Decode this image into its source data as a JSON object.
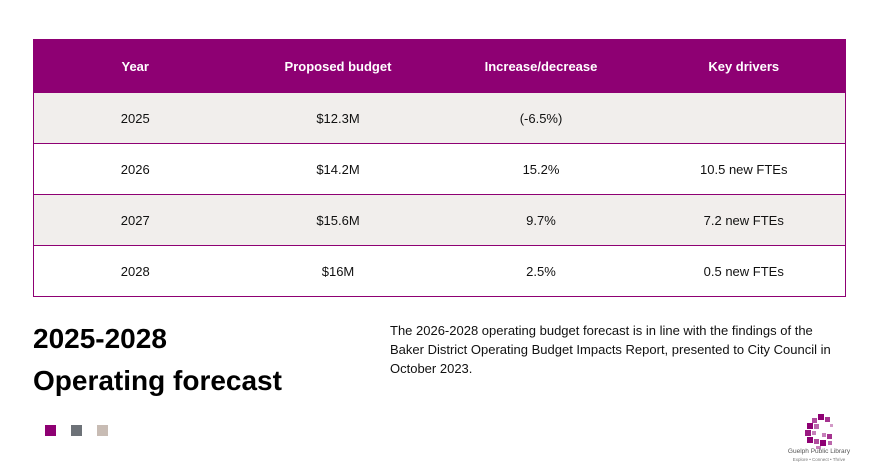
{
  "table": {
    "headers": [
      "Year",
      "Proposed budget",
      "Increase/decrease",
      "Key drivers"
    ],
    "rows": [
      [
        "2025",
        "$12.3M",
        "(-6.5%)",
        ""
      ],
      [
        "2026",
        "$14.2M",
        "15.2%",
        "10.5 new FTEs"
      ],
      [
        "2027",
        "$15.6M",
        "9.7%",
        "7.2 new FTEs"
      ],
      [
        "2028",
        "$16M",
        "2.5%",
        "0.5 new FTEs"
      ]
    ]
  },
  "heading": {
    "line1": "2025-2028",
    "line2": "Operating forecast"
  },
  "note": "The 2026-2028 operating budget forecast is in line with the findings of the Baker District Operating Budget Impacts Report, presented to City Council in October 2023.",
  "logo": {
    "name": "Guelph Public Library",
    "tagline": "Explore • Connect • Thrive"
  },
  "colors": {
    "accent": "#8e0073",
    "swatches": [
      "#8e0073",
      "#6d7278",
      "#c8bcb4"
    ],
    "row_shade": "#f1eeec"
  }
}
